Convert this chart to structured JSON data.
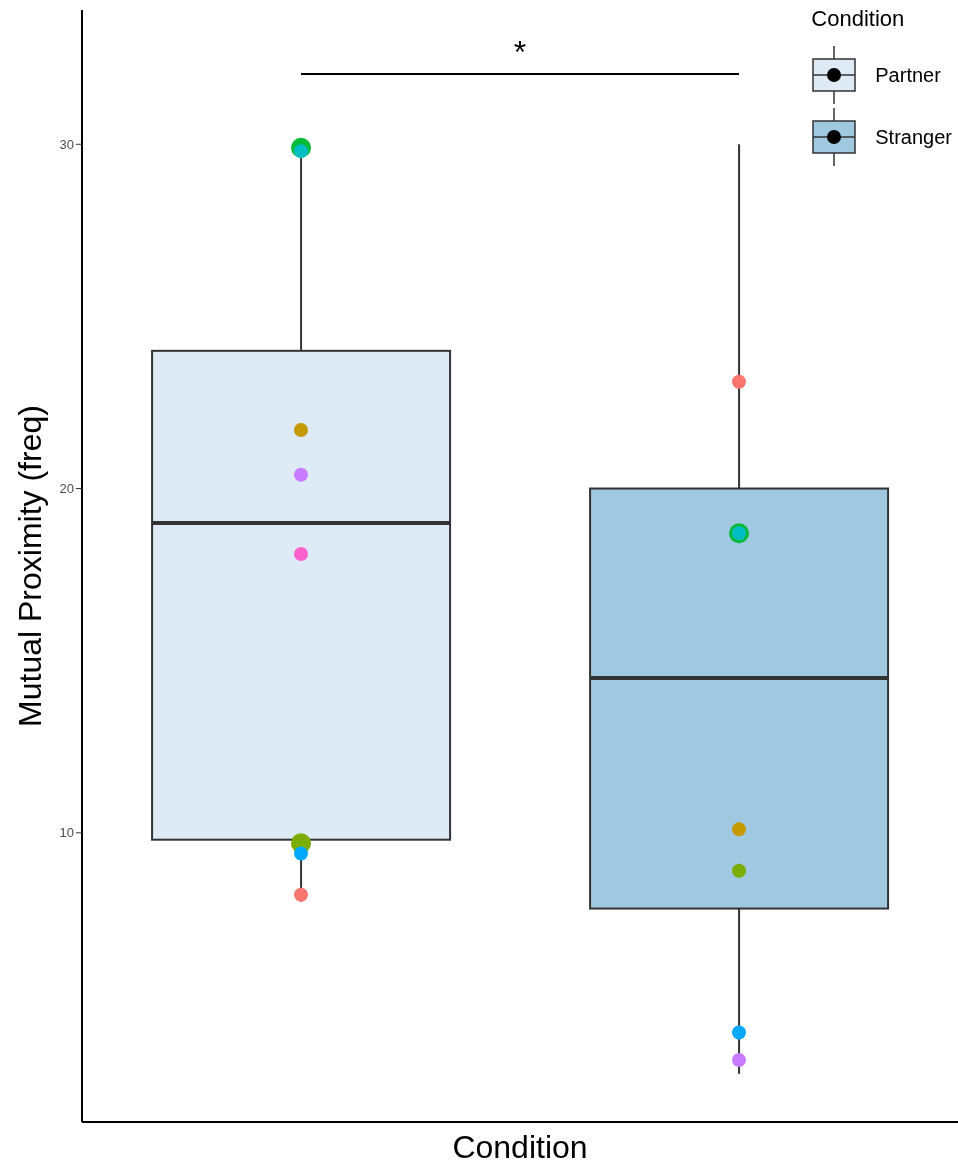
{
  "chart_data": {
    "type": "box",
    "xlabel": "Condition",
    "ylabel": "Mutual Proximity (freq)",
    "legend_title": "Condition",
    "legend": "top right",
    "grid": false,
    "tick_labels": "y",
    "marker": "circle",
    "categories": [
      null,
      null
    ],
    "ylim": [
      1.6,
      33.9
    ],
    "yticks": [
      10,
      20,
      30
    ],
    "annotations": [
      "*"
    ],
    "series": [
      {
        "name": "Partner",
        "type": "box",
        "color": "#deeaf6",
        "boxes": [
          {
            "low": 8.0,
            "q1": 9.8,
            "median": 19.0,
            "q3": 24.0,
            "high": 30.0
          },
          null
        ]
      },
      {
        "name": "Stranger",
        "type": "box",
        "color": "#a0c8e0",
        "boxes": [
          null,
          {
            "low": 3.0,
            "q1": 7.8,
            "median": 14.5,
            "q3": 20.0,
            "high": 30.0
          }
        ]
      },
      {
        "type": "scatter",
        "color": "#f8766d",
        "values": [
          8.2,
          23.1
        ]
      },
      {
        "type": "scatter",
        "color": "#c49a00",
        "values": [
          21.7,
          10.1
        ]
      },
      {
        "type": "scatter",
        "color": "#7cae00",
        "values": [
          9.7,
          8.9
        ]
      },
      {
        "type": "scatter",
        "color": "#00ba38",
        "values": [
          29.9,
          18.7
        ]
      },
      {
        "type": "scatter",
        "color": "#00bfc4",
        "values": [
          29.8,
          18.7
        ]
      },
      {
        "type": "scatter",
        "color": "#00a9ff",
        "values": [
          9.4,
          4.2
        ]
      },
      {
        "type": "scatter",
        "color": "#c77cff",
        "values": [
          20.4,
          3.4
        ]
      },
      {
        "type": "scatter",
        "color": "#ff61cc",
        "values": [
          18.1,
          null
        ]
      }
    ]
  }
}
